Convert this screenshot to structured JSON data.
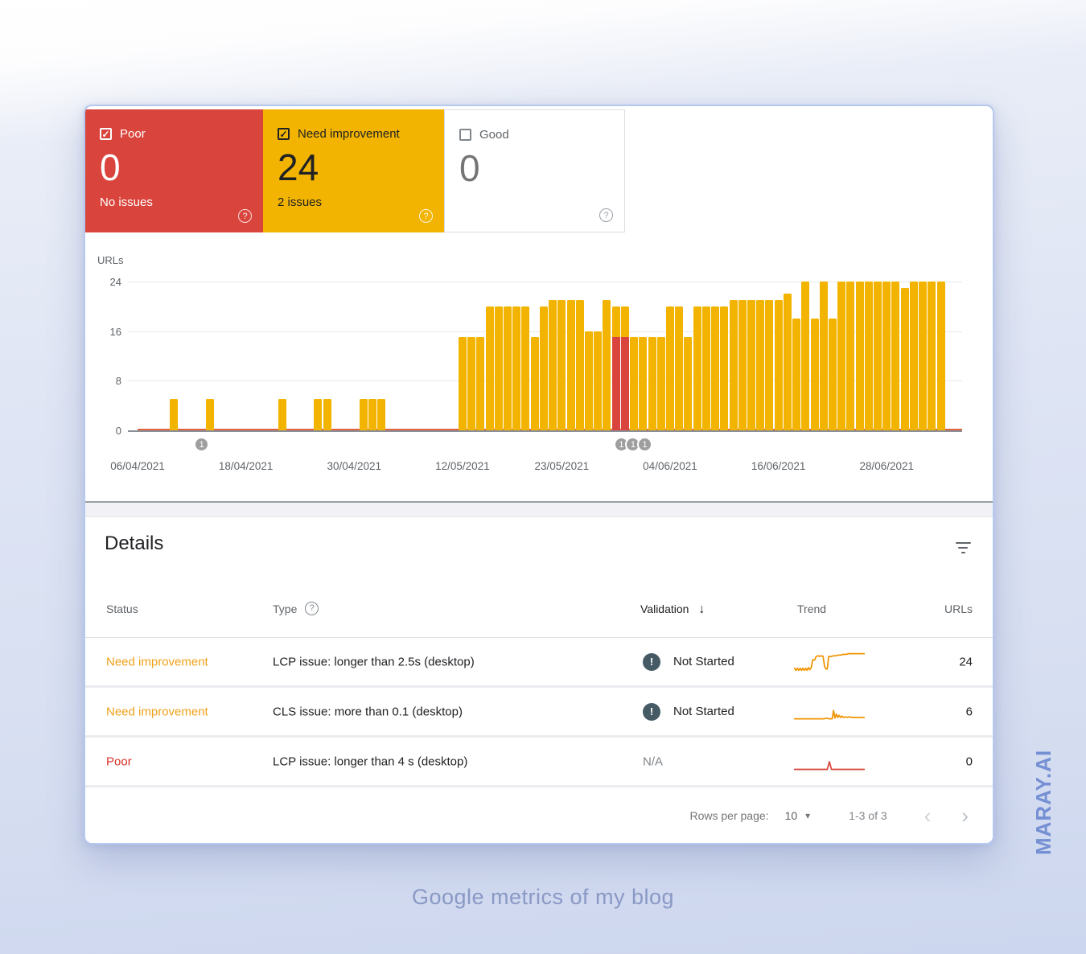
{
  "page": {
    "caption": "Google metrics of my blog",
    "watermark": "MARAY.AI"
  },
  "colors": {
    "bar_yellow": "#f2b400",
    "bar_red": "#d9453c",
    "card_red": "#d9453c",
    "card_yellow": "#f2b400",
    "poor_line": "#e0613d",
    "axis": "#8a8f98",
    "grid": "#e9e9ec",
    "need_improvement_text": "#efa11a",
    "poor_text": "#d93025",
    "trend_orange": "#f09300",
    "trend_red": "#d9453c"
  },
  "cards": [
    {
      "label": "Poor",
      "value": "0",
      "sub": "No issues",
      "checked": true,
      "check_glyph": "✓"
    },
    {
      "label": "Need improvement",
      "value": "24",
      "sub": "2 issues",
      "checked": true,
      "check_glyph": "✓"
    },
    {
      "label": "Good",
      "value": "0",
      "sub": "",
      "checked": false,
      "check_glyph": ""
    }
  ],
  "chart_data": {
    "type": "bar",
    "title": "",
    "ylabel": "URLs",
    "xlabel": "",
    "ylim": [
      0,
      24
    ],
    "y_ticks": [
      24,
      16,
      8,
      0
    ],
    "grid": true,
    "x_ticks": [
      {
        "day": 0,
        "label": "06/04/2021"
      },
      {
        "day": 12,
        "label": "18/04/2021"
      },
      {
        "day": 24,
        "label": "30/04/2021"
      },
      {
        "day": 36,
        "label": "12/05/2021"
      },
      {
        "day": 47,
        "label": "23/05/2021"
      },
      {
        "day": 59,
        "label": "04/06/2021"
      },
      {
        "day": 71,
        "label": "16/06/2021"
      },
      {
        "day": 83,
        "label": "28/06/2021"
      }
    ],
    "series_note": "v = need-improvement total URLs (yellow); poor = red stacked portion; poor line constant at 0",
    "poor_line_value": 0,
    "bars": [
      {
        "d": 4,
        "v": 5
      },
      {
        "d": 8,
        "v": 5
      },
      {
        "d": 16,
        "v": 5
      },
      {
        "d": 20,
        "v": 5
      },
      {
        "d": 21,
        "v": 5
      },
      {
        "d": 25,
        "v": 5
      },
      {
        "d": 26,
        "v": 5
      },
      {
        "d": 27,
        "v": 5
      },
      {
        "d": 36,
        "v": 15
      },
      {
        "d": 37,
        "v": 15
      },
      {
        "d": 38,
        "v": 15
      },
      {
        "d": 39,
        "v": 20
      },
      {
        "d": 40,
        "v": 20
      },
      {
        "d": 41,
        "v": 20
      },
      {
        "d": 42,
        "v": 20
      },
      {
        "d": 43,
        "v": 20
      },
      {
        "d": 44,
        "v": 15
      },
      {
        "d": 45,
        "v": 20
      },
      {
        "d": 46,
        "v": 21
      },
      {
        "d": 47,
        "v": 21
      },
      {
        "d": 48,
        "v": 21
      },
      {
        "d": 49,
        "v": 21
      },
      {
        "d": 50,
        "v": 16
      },
      {
        "d": 51,
        "v": 16
      },
      {
        "d": 52,
        "v": 21
      },
      {
        "d": 53,
        "v": 20,
        "poor": 15
      },
      {
        "d": 54,
        "v": 20,
        "poor": 15
      },
      {
        "d": 55,
        "v": 15
      },
      {
        "d": 56,
        "v": 15
      },
      {
        "d": 57,
        "v": 15
      },
      {
        "d": 58,
        "v": 15
      },
      {
        "d": 59,
        "v": 20
      },
      {
        "d": 60,
        "v": 20
      },
      {
        "d": 61,
        "v": 15
      },
      {
        "d": 62,
        "v": 20
      },
      {
        "d": 63,
        "v": 20
      },
      {
        "d": 64,
        "v": 20
      },
      {
        "d": 65,
        "v": 20
      },
      {
        "d": 66,
        "v": 21
      },
      {
        "d": 67,
        "v": 21
      },
      {
        "d": 68,
        "v": 21
      },
      {
        "d": 69,
        "v": 21
      },
      {
        "d": 70,
        "v": 21
      },
      {
        "d": 71,
        "v": 21
      },
      {
        "d": 72,
        "v": 22
      },
      {
        "d": 73,
        "v": 18
      },
      {
        "d": 74,
        "v": 24
      },
      {
        "d": 75,
        "v": 18
      },
      {
        "d": 76,
        "v": 24
      },
      {
        "d": 77,
        "v": 18
      },
      {
        "d": 78,
        "v": 24
      },
      {
        "d": 79,
        "v": 24
      },
      {
        "d": 80,
        "v": 24
      },
      {
        "d": 81,
        "v": 24
      },
      {
        "d": 82,
        "v": 24
      },
      {
        "d": 83,
        "v": 24
      },
      {
        "d": 84,
        "v": 24
      },
      {
        "d": 85,
        "v": 23
      },
      {
        "d": 86,
        "v": 24
      },
      {
        "d": 87,
        "v": 24
      },
      {
        "d": 88,
        "v": 24
      },
      {
        "d": 89,
        "v": 24
      }
    ],
    "markers": [
      {
        "d": 7.1,
        "label": "1"
      },
      {
        "d": 53.6,
        "label": "1"
      },
      {
        "d": 54.9,
        "label": "1"
      },
      {
        "d": 56.2,
        "label": "1"
      }
    ]
  },
  "details": {
    "title": "Details",
    "columns": {
      "status": "Status",
      "type": "Type",
      "validation": "Validation",
      "trend": "Trend",
      "urls": "URLs"
    },
    "sort_arrow": "↓",
    "rows": [
      {
        "status": "Need improvement",
        "status_color": "#efa11a",
        "type": "LCP issue: longer than 2.5s (desktop)",
        "validation": "Not Started",
        "validation_icon": true,
        "urls": "24",
        "trend": {
          "color": "#f09300",
          "points": [
            [
              0,
              3
            ],
            [
              2,
              0
            ],
            [
              4,
              3
            ],
            [
              6,
              0
            ],
            [
              8,
              3
            ],
            [
              10,
              0
            ],
            [
              12,
              3
            ],
            [
              14,
              0
            ],
            [
              16,
              3
            ],
            [
              18,
              0
            ],
            [
              20,
              4
            ],
            [
              22,
              1
            ],
            [
              24,
              4
            ],
            [
              26,
              15
            ],
            [
              29,
              15
            ],
            [
              31,
              20
            ],
            [
              34,
              21
            ],
            [
              36,
              20
            ],
            [
              38,
              21
            ],
            [
              41,
              20
            ],
            [
              43,
              6
            ],
            [
              45,
              2
            ],
            [
              47,
              2
            ],
            [
              49,
              20
            ],
            [
              53,
              20
            ],
            [
              56,
              21
            ],
            [
              60,
              21
            ],
            [
              63,
              22
            ],
            [
              67,
              22
            ],
            [
              70,
              23
            ],
            [
              74,
              23
            ],
            [
              78,
              24
            ],
            [
              100,
              24
            ]
          ]
        }
      },
      {
        "status": "Need improvement",
        "status_color": "#efa11a",
        "type": "CLS issue: more than 0.1 (desktop)",
        "validation": "Not Started",
        "validation_icon": true,
        "urls": "6",
        "trend": {
          "color": "#f09300",
          "points": [
            [
              0,
              2
            ],
            [
              38,
              2
            ],
            [
              42,
              2
            ],
            [
              46,
              3
            ],
            [
              50,
              2
            ],
            [
              54,
              2
            ],
            [
              56,
              14
            ],
            [
              58,
              3
            ],
            [
              60,
              9
            ],
            [
              62,
              4
            ],
            [
              64,
              7
            ],
            [
              66,
              4
            ],
            [
              68,
              6
            ],
            [
              70,
              4
            ],
            [
              73,
              5
            ],
            [
              76,
              4
            ],
            [
              79,
              5
            ],
            [
              82,
              4
            ],
            [
              100,
              4
            ]
          ]
        }
      },
      {
        "status": "Poor",
        "status_color": "#d93025",
        "type": "LCP issue: longer than 4 s (desktop)",
        "validation": "N/A",
        "validation_icon": false,
        "urls": "0",
        "trend": {
          "color": "#d9453c",
          "points": [
            [
              0,
              1
            ],
            [
              47,
              1
            ],
            [
              50,
              12
            ],
            [
              53,
              1
            ],
            [
              100,
              1
            ]
          ]
        }
      }
    ],
    "pagination": {
      "rows_per_page_label": "Rows per page:",
      "rows_per_page": "10",
      "dropdown_glyph": "▾",
      "range": "1-3 of 3",
      "prev_glyph": "‹",
      "next_glyph": "›"
    }
  }
}
